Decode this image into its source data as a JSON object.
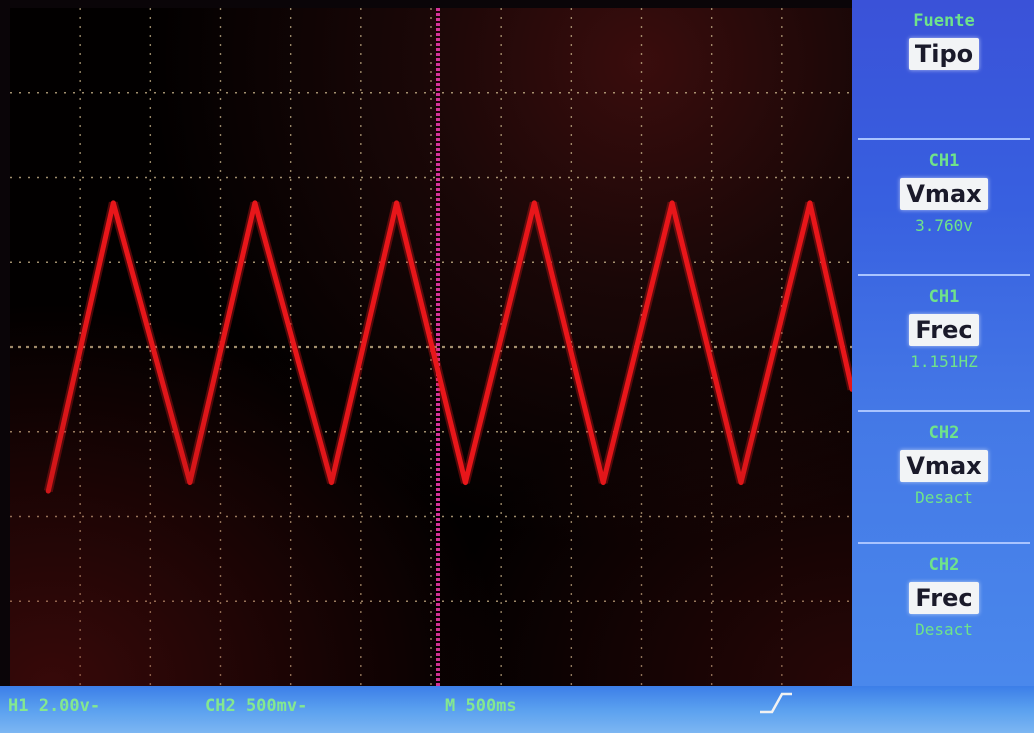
{
  "menu": [
    {
      "header": "Fuente",
      "button": "Tipo",
      "value": ""
    },
    {
      "header": "CH1",
      "button": "Vmax",
      "value": "3.760v"
    },
    {
      "header": "CH1",
      "button": "Frec",
      "value": "1.151HZ"
    },
    {
      "header": "CH2",
      "button": "Vmax",
      "value": "Desact"
    },
    {
      "header": "CH2",
      "button": "Frec",
      "value": "Desact"
    }
  ],
  "status": {
    "ch1_scale": "H1 2.00v-",
    "ch2_scale": "CH2 500mv-",
    "timebase": "M 500ms",
    "trigger_icon": "rising-edge-icon"
  },
  "colors": {
    "trace": "#e8161a",
    "trigger_cursor": "#d6339a",
    "menu_bg": "#3f66e0",
    "menu_text": "#6fe38a",
    "grid": "#c9b48a"
  },
  "chart_data": {
    "type": "line",
    "title": "",
    "xlabel": "",
    "ylabel": "",
    "x": [
      0.0,
      0.17,
      0.37,
      0.54,
      0.74,
      0.91,
      1.09,
      1.27,
      1.45,
      1.63,
      1.81,
      1.99,
      2.1
    ],
    "series": [
      {
        "values": [
          -1.7,
          1.7,
          -1.6,
          1.7,
          -1.6,
          1.7,
          -1.6,
          1.7,
          -1.6,
          1.7,
          -1.6,
          1.7,
          -0.5
        ]
      }
    ],
    "xlim": [
      -0.1,
      2.1
    ],
    "ylim": [
      -4.0,
      4.0
    ],
    "grid": true
  }
}
